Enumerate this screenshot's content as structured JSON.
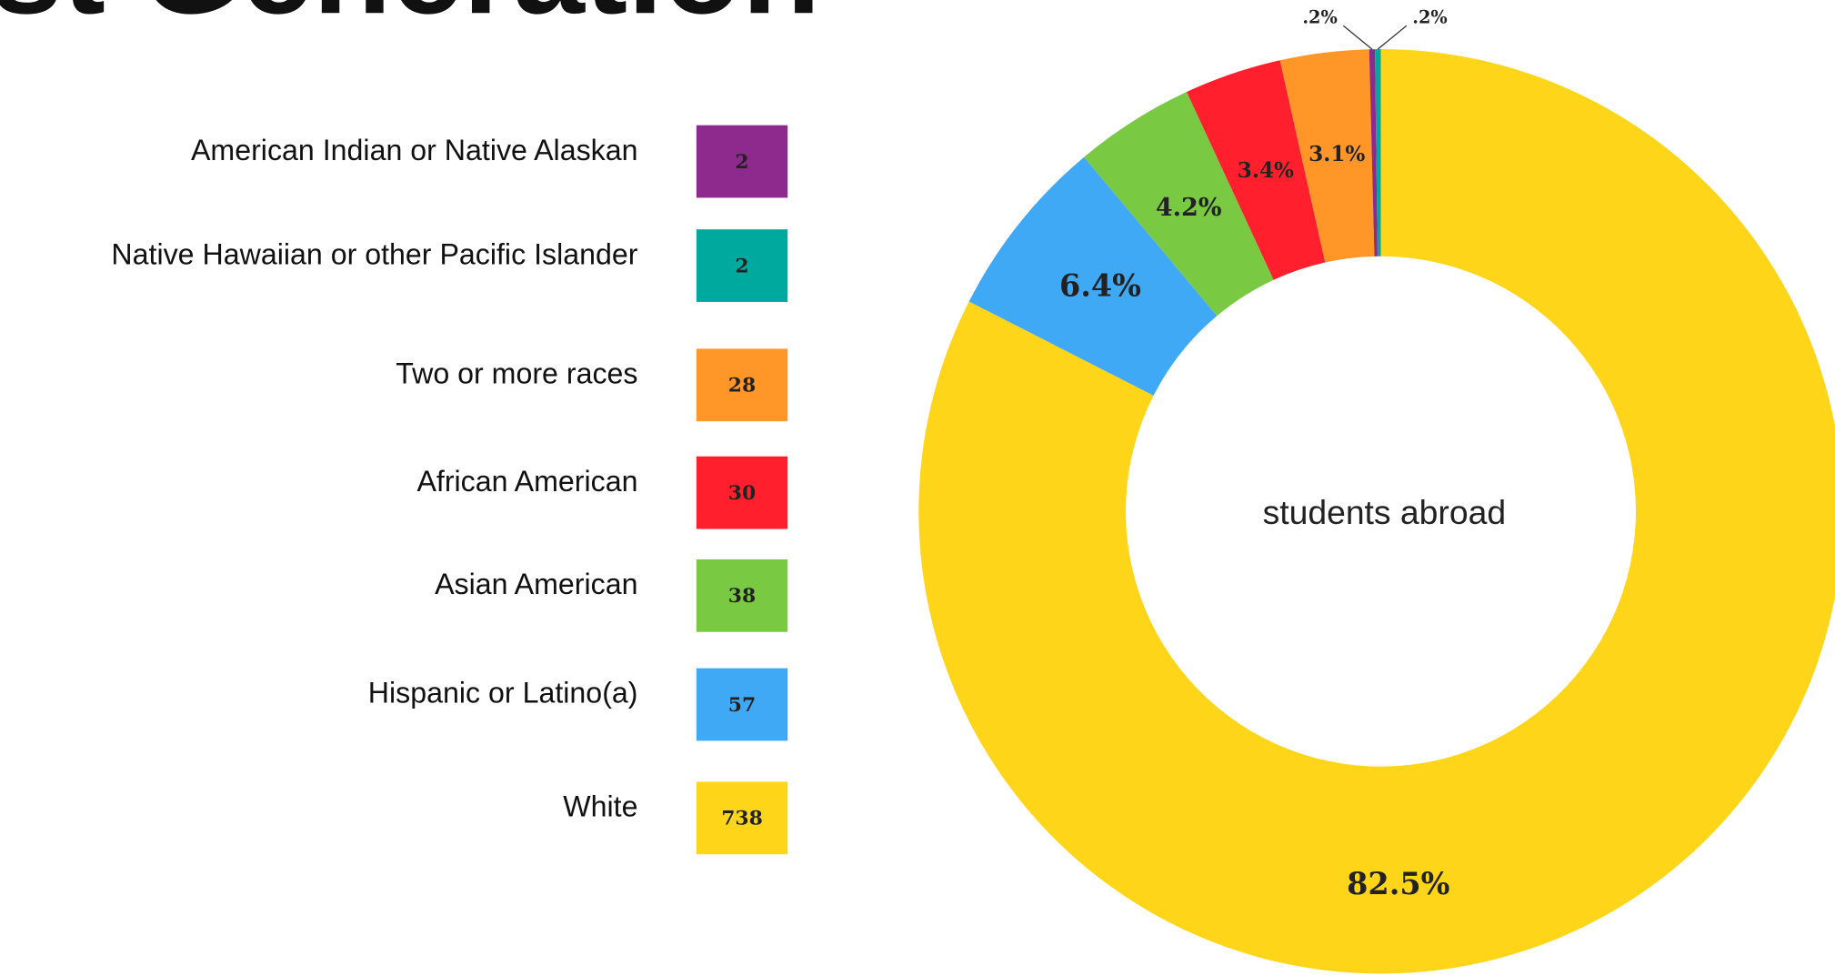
{
  "chart_data": {
    "type": "donut",
    "title": "st Generation",
    "center_label": "students abroad",
    "categories": [
      "American Indian or Native Alaskan",
      "Native Hawaiian or other Pacific Islander",
      "Two or more races",
      "African American",
      "Asian American",
      "Hispanic or Latino(a)",
      "White"
    ],
    "counts": [
      2,
      2,
      28,
      30,
      38,
      57,
      738
    ],
    "values": [
      0.2,
      0.2,
      3.1,
      3.4,
      4.2,
      6.4,
      82.5
    ],
    "value_labels": [
      ".2%",
      ".2%",
      "3.1%",
      "3.4%",
      "4.2%",
      "6.4%",
      "82.5%"
    ],
    "colors": [
      "#8e2a8e",
      "#00a99d",
      "#ff9627",
      "#ff1f2d",
      "#7ac943",
      "#3fa9f5",
      "#ffd51a"
    ]
  }
}
